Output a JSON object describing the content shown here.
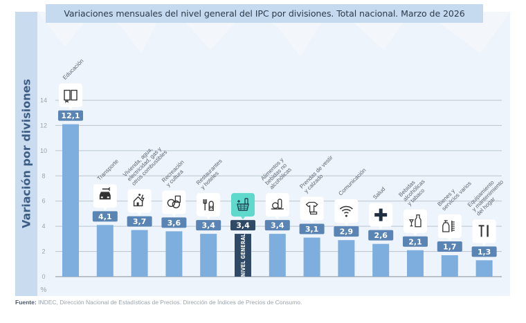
{
  "colors": {
    "bar": "#7eaedd",
    "highlight_bar": "#2e4a66",
    "value_badge": "#5a84b3",
    "highlight_badge": "#2e4a66",
    "highlight_icon_bg": "#5fd9cc",
    "grid": "#b9c3cd",
    "axis": "#a6b0ba"
  },
  "footer": {
    "source_label": "Fuente:",
    "source_text": " INDEC, Dirección Nacional de Estadísticas de Precios. Dirección de Índices de Precios de Consumo."
  },
  "chart_data": {
    "type": "bar",
    "title": "Variaciones mensuales del nivel general del IPC por divisiones. Total nacional. Marzo de 2026",
    "xlabel": "",
    "ylabel": "Variación por divisiones",
    "yunit": "%",
    "ylim": [
      0,
      14
    ],
    "yticks": [
      0,
      2,
      4,
      6,
      8,
      10,
      12,
      14
    ],
    "grid": true,
    "categories": [
      "Educación",
      "Transporte",
      "Vivienda, agua, electricidad, gas y otros combustibles",
      "Recreación y cultura",
      "Restaurantes y hoteles",
      "Nivel general",
      "Alimentos y bebidas no alcohólicas",
      "Prendas de vestir y calzado",
      "Comunicación",
      "Salud",
      "Bebidas alcohólicas y tabaco",
      "Bienes y servicios varios",
      "Equipamiento y mantenimiento del hogar"
    ],
    "category_label_lines": [
      [
        "Educación"
      ],
      [
        "Transporte"
      ],
      [
        "Vivienda, agua,",
        "electricidad, gas y",
        "otros combustibles"
      ],
      [
        "Recreación",
        "y cultura"
      ],
      [
        "Restaurantes",
        "y hoteles"
      ],
      [],
      [
        "Alimentos y",
        "bebidas no",
        "alcohólicas"
      ],
      [
        "Prendas de vestir",
        "y calzado"
      ],
      [
        "Comunicación"
      ],
      [
        "Salud"
      ],
      [
        "Bebidas",
        "alcohólicas",
        "y tabaco"
      ],
      [
        "Bienes y",
        "servicios varios"
      ],
      [
        "Equipamiento",
        "y mantenimiento",
        "del hogar"
      ]
    ],
    "values": [
      12.1,
      4.1,
      3.7,
      3.6,
      3.4,
      3.4,
      3.4,
      3.1,
      2.9,
      2.6,
      2.1,
      1.7,
      1.3
    ],
    "value_labels": [
      "12,1",
      "4,1",
      "3,7",
      "3,6",
      "3,4",
      "3,4",
      "3,4",
      "3,1",
      "2,9",
      "2,6",
      "2,1",
      "1,7",
      "1,3"
    ],
    "icons": [
      "book-icon",
      "car-wrench-icon",
      "house-utilities-icon",
      "theater-masks-icon",
      "fork-hotel-icon",
      "shopping-basket-icon",
      "food-bottle-icon",
      "clothes-shoe-icon",
      "wifi-icon",
      "health-cross-icon",
      "bottle-glass-icon",
      "spray-comb-icon",
      "tools-icon"
    ],
    "highlight_index": 5,
    "highlight_bar_label": "NIVEL GENERAL"
  }
}
